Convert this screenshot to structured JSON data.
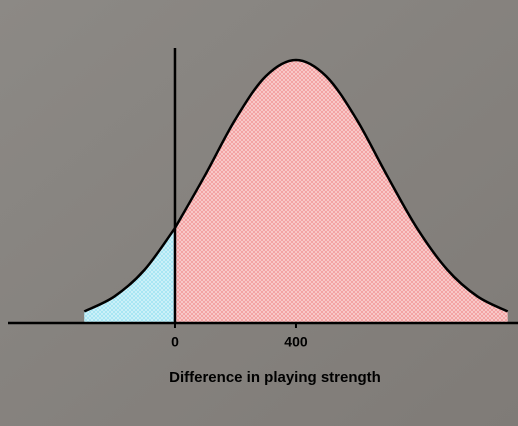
{
  "chart_data": {
    "type": "area",
    "x_label": "Difference in playing strength",
    "xlim": [
      -552,
      1134
    ],
    "ylim": [
      0,
      1
    ],
    "xticks": [
      0,
      400
    ],
    "series": [
      {
        "color": "#9fe3f2",
        "x": [
          -300,
          -200,
          -100,
          0
        ],
        "values": [
          0.044,
          0.101,
          0.203,
          0.361
        ]
      },
      {
        "color": "#f29a9a",
        "x": [
          0,
          100,
          200,
          300,
          400,
          500,
          600,
          700,
          800,
          900,
          1000,
          1100
        ],
        "values": [
          0.361,
          0.563,
          0.775,
          0.938,
          1,
          0.938,
          0.775,
          0.563,
          0.361,
          0.203,
          0.101,
          0.044
        ]
      }
    ]
  }
}
